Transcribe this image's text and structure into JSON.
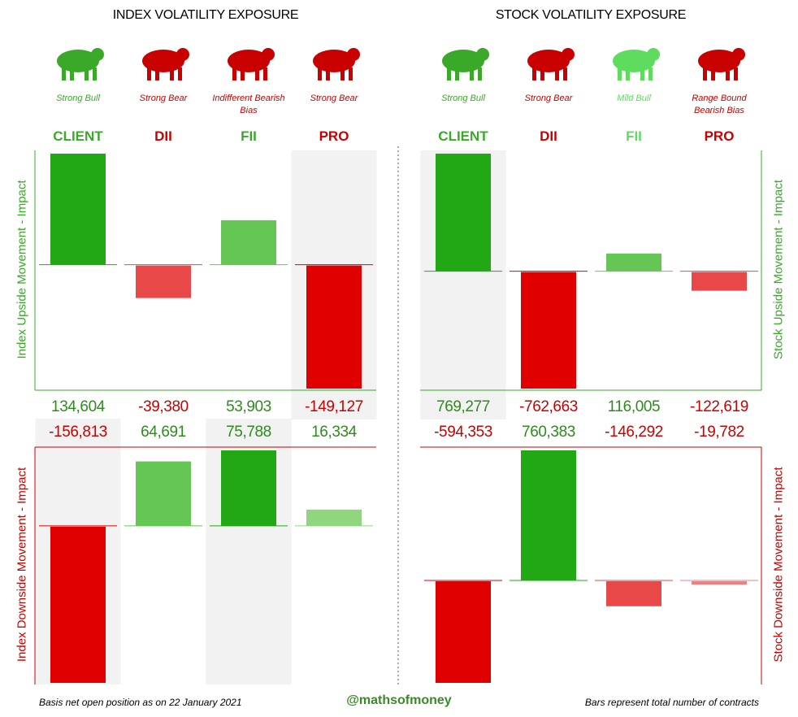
{
  "chart_data": [
    {
      "type": "bar",
      "title": "INDEX VOLATILITY EXPOSURE",
      "categories": [
        "CLIENT",
        "DII",
        "FII",
        "PRO"
      ],
      "category_colors": [
        "#3aa829",
        "#c80000",
        "#3aa829",
        "#c80000"
      ],
      "biases": [
        "Strong Bull",
        "Strong Bear",
        "Indifferent Bearish Bias",
        "Strong Bear"
      ],
      "bias_colors": [
        "#3aa829",
        "#c80000",
        "#c80000",
        "#c80000"
      ],
      "y_label": "Index Upside Movement - Impact",
      "values": [
        134604,
        -39380,
        53903,
        -149127
      ],
      "value_labels": [
        "134,604",
        "-39,380",
        "53,903",
        "-149,127"
      ],
      "colors": [
        "#22a814",
        "#e84848",
        "#66c655",
        "#e00000"
      ],
      "shaded": [
        false,
        false,
        false,
        true
      ]
    },
    {
      "type": "bar",
      "y_label": "Index Downside Movement - Impact",
      "values": [
        -156813,
        64691,
        75788,
        16334
      ],
      "value_labels": [
        "-156,813",
        "64,691",
        "75,788",
        "16,334"
      ],
      "colors": [
        "#e00000",
        "#66c655",
        "#22a814",
        "#8fd67f"
      ],
      "shaded": [
        true,
        false,
        true,
        false
      ]
    },
    {
      "type": "bar",
      "title": "STOCK VOLATILITY EXPOSURE",
      "categories": [
        "CLIENT",
        "DII",
        "FII",
        "PRO"
      ],
      "category_colors": [
        "#3aa829",
        "#c80000",
        "#5ddc5d",
        "#c80000"
      ],
      "biases": [
        "Strong Bull",
        "Strong Bear",
        "Mild Bull",
        "Range Bound Bearish Bias"
      ],
      "bias_colors": [
        "#3aa829",
        "#c80000",
        "#5ddc5d",
        "#c80000"
      ],
      "y_label": "Stock Upside Movement - Impact",
      "values": [
        769277,
        -762663,
        116005,
        -122619
      ],
      "value_labels": [
        "769,277",
        "-762,663",
        "116,005",
        "-122,619"
      ],
      "colors": [
        "#22a814",
        "#e00000",
        "#66c655",
        "#e84848"
      ],
      "shaded": [
        true,
        false,
        false,
        false
      ]
    },
    {
      "type": "bar",
      "y_label": "Stock Downside Movement - Impact",
      "values": [
        -594353,
        760383,
        -146292,
        -19782
      ],
      "value_labels": [
        "-594,353",
        "760,383",
        "-146,292",
        "-19,782"
      ],
      "colors": [
        "#e00000",
        "#22a814",
        "#e84848",
        "#ee8080"
      ],
      "shaded": [
        false,
        false,
        false,
        false
      ]
    }
  ],
  "footer": {
    "left": "Basis net open position as on 22 January 2021",
    "center": "@mathsofmoney",
    "right": "Bars represent total number of contracts"
  }
}
